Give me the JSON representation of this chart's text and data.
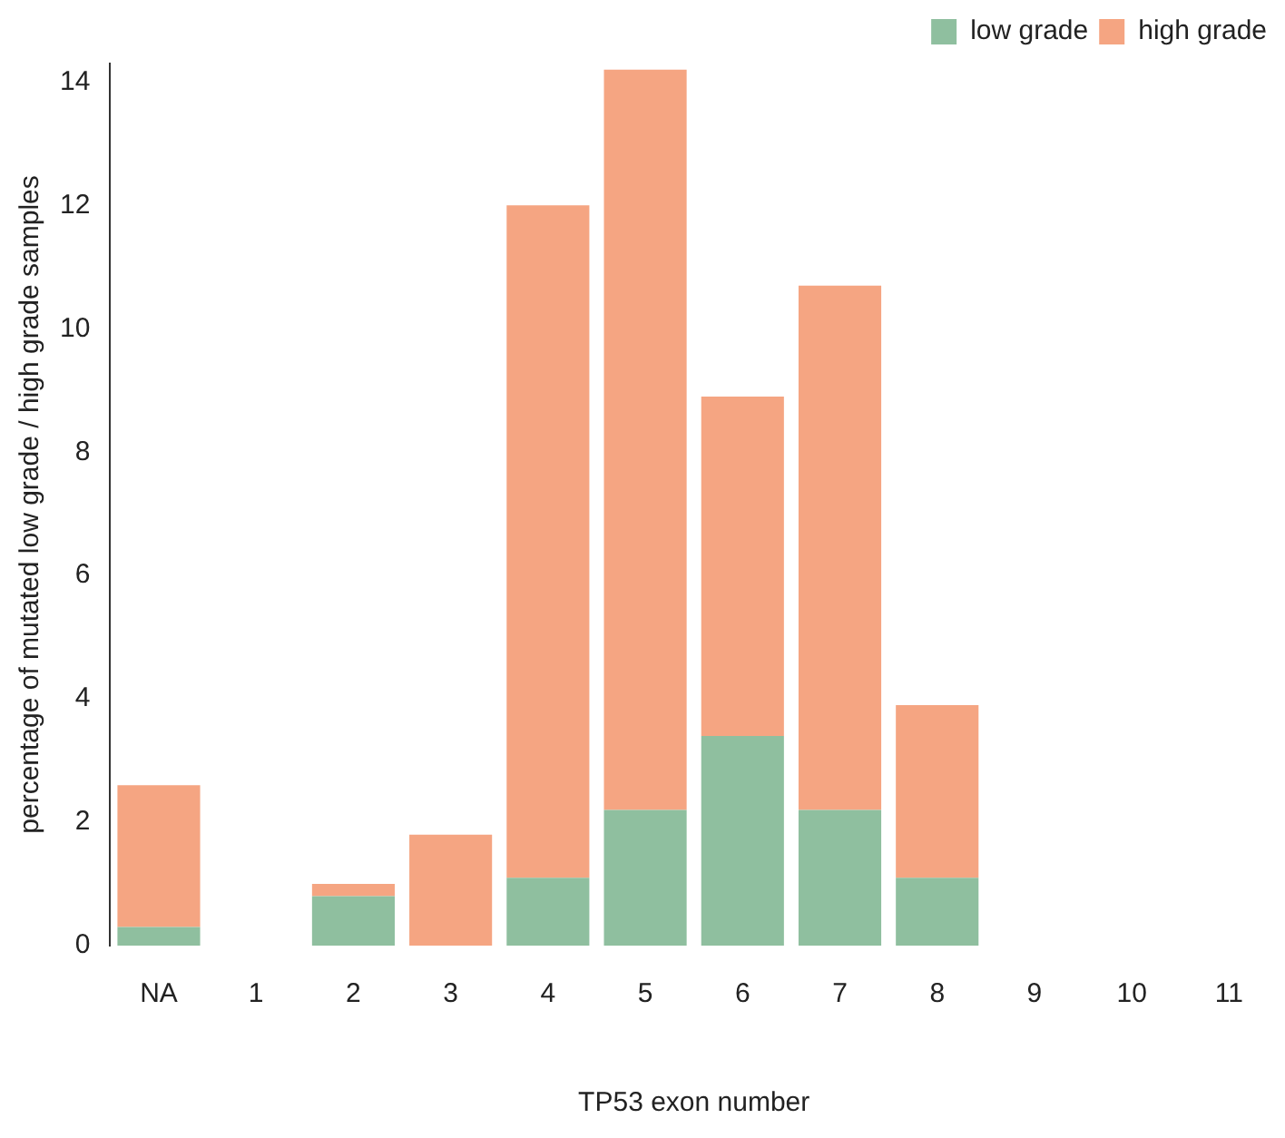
{
  "chart_data": {
    "type": "bar",
    "xlabel": "TP53 exon number",
    "ylabel": "percentage of mutated low grade / high grade samples",
    "categories": [
      "NA",
      "1",
      "2",
      "3",
      "4",
      "5",
      "6",
      "7",
      "8",
      "9",
      "10",
      "11"
    ],
    "stacked": true,
    "series": [
      {
        "name": "low grade",
        "color": "#8fbf9f",
        "values": [
          0.3,
          0,
          0.8,
          0,
          1.1,
          2.2,
          3.4,
          2.2,
          1.1,
          0,
          0,
          0
        ]
      },
      {
        "name": "high grade",
        "color": "#f5a582",
        "values": [
          2.3,
          0,
          0.2,
          1.8,
          10.9,
          12.0,
          5.5,
          8.5,
          2.8,
          0,
          0,
          0
        ]
      }
    ],
    "ylim": [
      0,
      14.3
    ],
    "yticks": [
      0,
      2,
      4,
      6,
      8,
      10,
      12,
      14
    ],
    "grid": false,
    "legend": "top right"
  }
}
